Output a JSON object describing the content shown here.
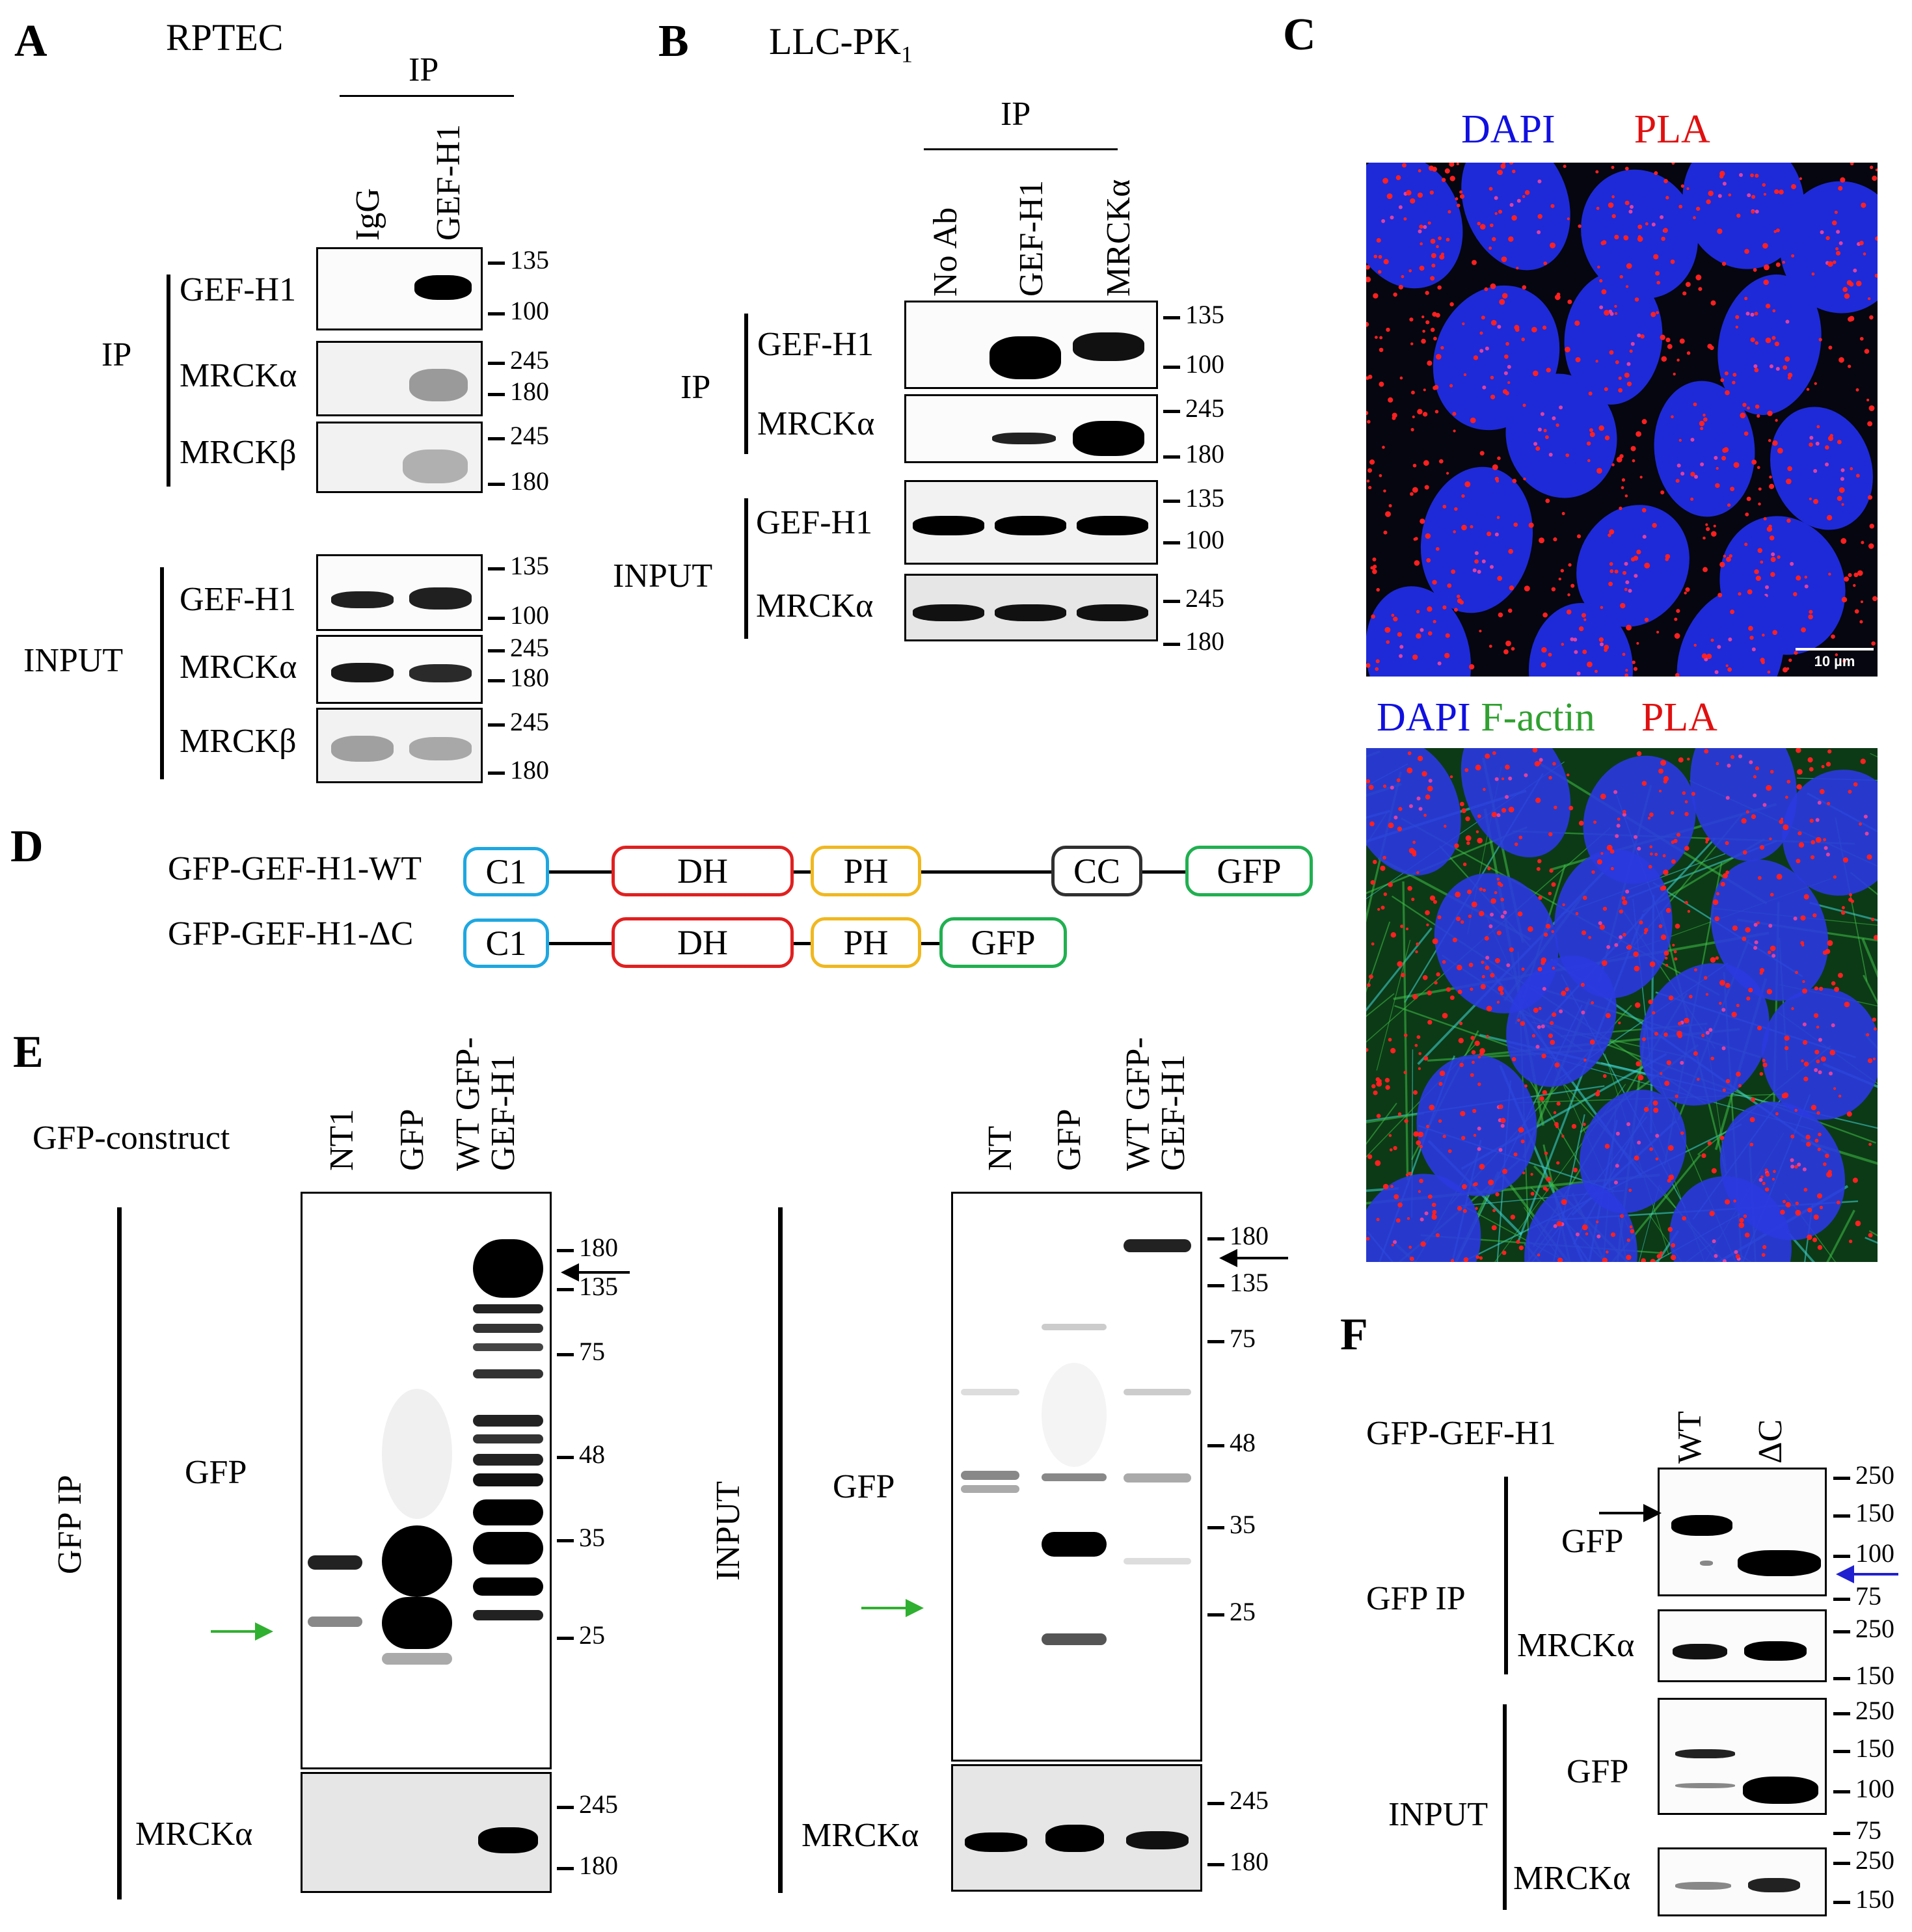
{
  "panels": {
    "A": "A",
    "B": "B",
    "C": "C",
    "D": "D",
    "E": "E",
    "F": "F"
  },
  "panelA": {
    "cell_line": "RPTEC",
    "ip_header": "IP",
    "lanes": [
      "IgG",
      "GEF-H1"
    ],
    "ip_group": "IP",
    "input_group": "INPUT",
    "blot_labels": [
      "GEF-H1",
      "MRCKα",
      "MRCKβ",
      "GEF-H1",
      "MRCKα",
      "MRCKβ"
    ],
    "markers": {
      "gef": [
        "135",
        "100"
      ],
      "mrck": [
        "245",
        "180"
      ]
    }
  },
  "panelB": {
    "cell_line": "LLC-PK",
    "cell_line_sub": "1",
    "ip_header": "IP",
    "lanes": [
      "No Ab",
      "GEF-H1",
      "MRCKα"
    ],
    "ip_group": "IP",
    "input_group": "INPUT",
    "blot_labels": [
      "GEF-H1",
      "MRCKα",
      "GEF-H1",
      "MRCKα"
    ],
    "markers": {
      "gef": [
        "135",
        "100"
      ],
      "mrck": [
        "245",
        "180"
      ]
    }
  },
  "panelC": {
    "top_labels": [
      {
        "text": "DAPI",
        "color": "#1010e0"
      },
      {
        "text": "PLA",
        "color": "#e01010"
      }
    ],
    "bottom_labels": [
      {
        "text": "DAPI",
        "color": "#1010e0"
      },
      {
        "text": "F-actin",
        "color": "#30a030"
      },
      {
        "text": "PLA",
        "color": "#e01010"
      }
    ],
    "scale_bar": "10 µm"
  },
  "panelD": {
    "constructs": [
      {
        "name": "GFP-GEF-H1-WT",
        "domains": [
          "C1",
          "DH",
          "PH",
          "CC",
          "GFP"
        ]
      },
      {
        "name": "GFP-GEF-H1-ΔC",
        "domains": [
          "C1",
          "DH",
          "PH",
          "GFP"
        ]
      }
    ],
    "domain_colors": {
      "C1": "#1ea7e0",
      "DH": "#e02020",
      "PH": "#f0b820",
      "CC": "#303030",
      "GFP": "#20b050"
    }
  },
  "panelE": {
    "construct_label": "GFP-construct",
    "left": {
      "lanes": [
        "NT1",
        "GFP",
        "WT GFP-",
        "GEF-H1"
      ],
      "group": "GFP IP",
      "blot_labels": [
        "GFP",
        "MRCKα"
      ],
      "markers": [
        "180",
        "135",
        "75",
        "48",
        "35",
        "25"
      ],
      "mrck_markers": [
        "245",
        "180"
      ]
    },
    "right": {
      "lanes": [
        "NT",
        "GFP",
        "WT GFP-",
        "GEF-H1"
      ],
      "group": "INPUT",
      "blot_labels": [
        "GFP",
        "MRCKα"
      ],
      "markers": [
        "180",
        "135",
        "75",
        "48",
        "35",
        "25"
      ],
      "mrck_markers": [
        "245",
        "180"
      ]
    }
  },
  "panelF": {
    "construct_label": "GFP-GEF-H1",
    "lanes": [
      "WT",
      "ΔC"
    ],
    "ip_group": "GFP IP",
    "input_group": "INPUT",
    "blot_labels": [
      "GFP",
      "MRCKα",
      "GFP",
      "MRCKα"
    ],
    "markers": {
      "gfp": [
        "250",
        "150",
        "100",
        "75"
      ],
      "mrck": [
        "250",
        "150"
      ]
    }
  }
}
